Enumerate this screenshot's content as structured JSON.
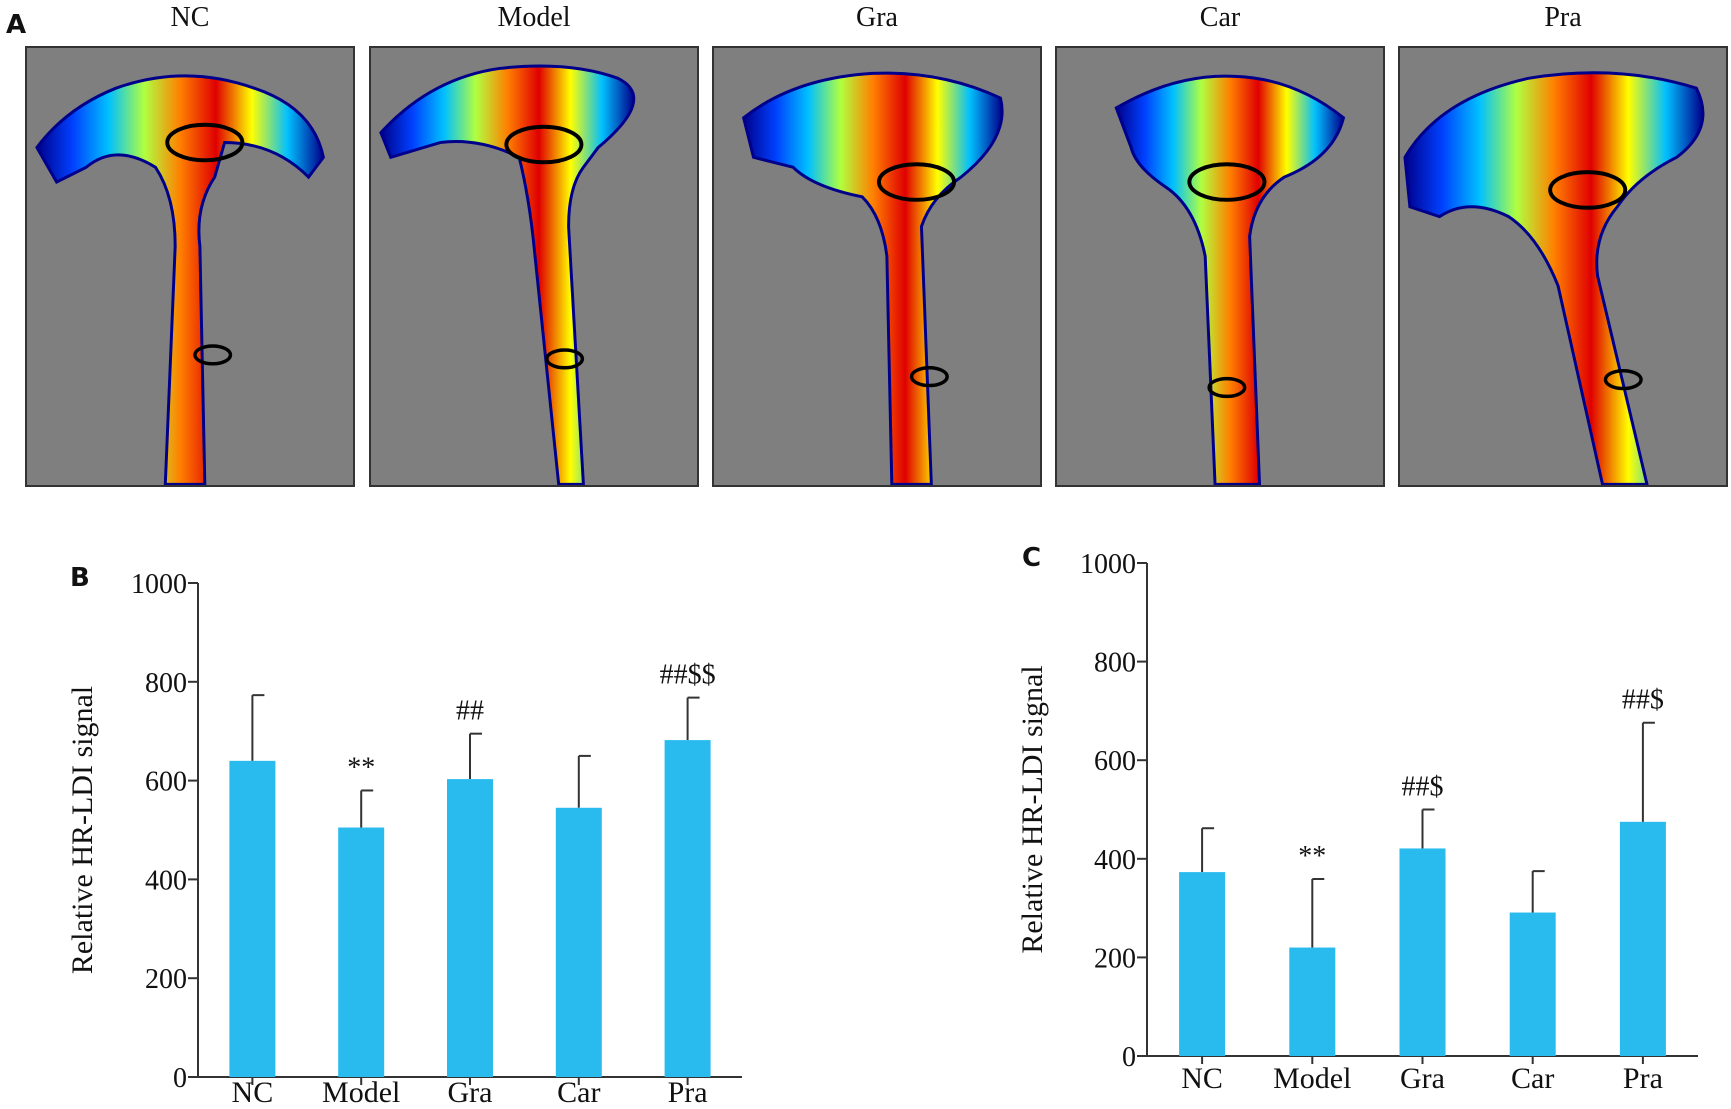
{
  "panel_a": {
    "letter": "A",
    "groups": [
      "NC",
      "Model",
      "Gra",
      "Car",
      "Pra"
    ],
    "colormap": [
      "#00008b",
      "#0040ff",
      "#00c0ff",
      "#b0ff40",
      "#ffff00",
      "#ff8000",
      "#e00000"
    ],
    "background_color": "#7f7f7f"
  },
  "chart_data": [
    {
      "panel": "B",
      "type": "bar",
      "categories": [
        "NC",
        "Model",
        "Gra",
        "Car",
        "Pra"
      ],
      "values": [
        640,
        505,
        603,
        545,
        682
      ],
      "error_up": [
        133,
        75,
        92,
        105,
        86
      ],
      "annotations": [
        "",
        "**",
        "##",
        "",
        "##$$"
      ],
      "ylabel": "Relative HR-LDI signal",
      "ylim": [
        0,
        1000
      ],
      "yticks": [
        0,
        200,
        400,
        600,
        800,
        1000
      ],
      "bar_color": "#29bbee",
      "grid": false
    },
    {
      "panel": "C",
      "type": "bar",
      "categories": [
        "NC",
        "Model",
        "Gra",
        "Car",
        "Pra"
      ],
      "values": [
        373,
        220,
        421,
        291,
        475
      ],
      "error_up": [
        89,
        139,
        79,
        84,
        201
      ],
      "annotations": [
        "",
        "**",
        "##$",
        "",
        "##$"
      ],
      "ylabel": "Relative HR-LDI signal",
      "ylim": [
        0,
        1000
      ],
      "yticks": [
        0,
        200,
        400,
        600,
        800,
        1000
      ],
      "bar_color": "#29bbee",
      "grid": false
    }
  ]
}
